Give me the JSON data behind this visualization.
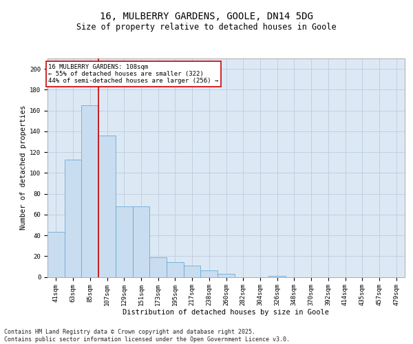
{
  "title1": "16, MULBERRY GARDENS, GOOLE, DN14 5DG",
  "title2": "Size of property relative to detached houses in Goole",
  "xlabel": "Distribution of detached houses by size in Goole",
  "ylabel": "Number of detached properties",
  "categories": [
    "41sqm",
    "63sqm",
    "85sqm",
    "107sqm",
    "129sqm",
    "151sqm",
    "173sqm",
    "195sqm",
    "217sqm",
    "238sqm",
    "260sqm",
    "282sqm",
    "304sqm",
    "326sqm",
    "348sqm",
    "370sqm",
    "392sqm",
    "414sqm",
    "435sqm",
    "457sqm",
    "479sqm"
  ],
  "values": [
    43,
    113,
    165,
    136,
    68,
    68,
    19,
    14,
    11,
    6,
    3,
    0,
    0,
    1,
    0,
    0,
    0,
    0,
    0,
    0,
    0
  ],
  "bar_color": "#c9ddf0",
  "bar_edge_color": "#6aaad4",
  "vline_color": "#cc0000",
  "vline_x": 2.5,
  "annotation_text": "16 MULBERRY GARDENS: 108sqm\n← 55% of detached houses are smaller (322)\n44% of semi-detached houses are larger (256) →",
  "annotation_box_color": "#cc0000",
  "ylim": [
    0,
    210
  ],
  "yticks": [
    0,
    20,
    40,
    60,
    80,
    100,
    120,
    140,
    160,
    180,
    200
  ],
  "grid_color": "#c0cfe0",
  "bg_color": "#dce9f5",
  "footer_line1": "Contains HM Land Registry data © Crown copyright and database right 2025.",
  "footer_line2": "Contains public sector information licensed under the Open Government Licence v3.0.",
  "title1_fontsize": 10,
  "title2_fontsize": 8.5,
  "axis_label_fontsize": 7.5,
  "tick_fontsize": 6.5,
  "annotation_fontsize": 6.5,
  "footer_fontsize": 6.0
}
